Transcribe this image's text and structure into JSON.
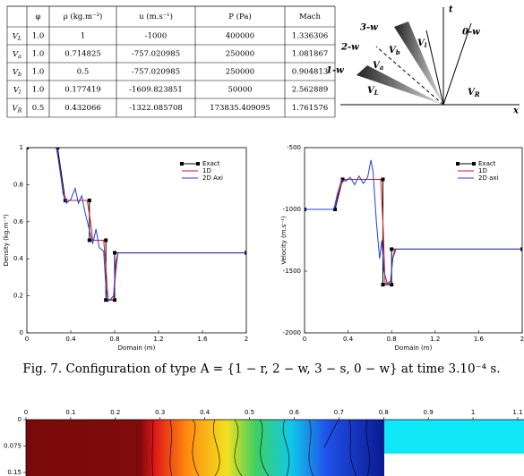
{
  "table": {
    "header": [
      "φ",
      "ρ (kg.m⁻³)",
      "u (m.s⁻¹)",
      "P (Pa)",
      "Mach"
    ],
    "rows": [
      {
        "symbol": "V",
        "subscript": "L",
        "cells": [
          "1.0",
          "1",
          "-1000",
          "400000",
          "1.336306"
        ]
      },
      {
        "symbol": "V",
        "subscript": "a",
        "cells": [
          "1.0",
          "0.714825",
          "-757.020985",
          "250000",
          "1.081867"
        ]
      },
      {
        "symbol": "V",
        "subscript": "b",
        "cells": [
          "1.0",
          "0.5",
          "-757.020985",
          "250000",
          "0.904813"
        ]
      },
      {
        "symbol": "V",
        "subscript": "l",
        "cells": [
          "1.0",
          "0.177419",
          "-1609.823851",
          "50000",
          "2.562889"
        ]
      },
      {
        "symbol": "V",
        "subscript": "R",
        "cells": [
          "0.5",
          "0.432066",
          "-1322.085708",
          "173835.409095",
          "1.761576"
        ]
      }
    ]
  },
  "diagram": {
    "t_label": "t",
    "x_label": "x",
    "waves": [
      "3-w",
      "2-w",
      "1-w",
      "0-w"
    ],
    "states": [
      {
        "symbol": "V",
        "subscript": "l"
      },
      {
        "symbol": "V",
        "subscript": "b"
      },
      {
        "symbol": "V",
        "subscript": "a"
      },
      {
        "symbol": "V",
        "subscript": "L"
      },
      {
        "symbol": "V",
        "subscript": "R"
      }
    ]
  },
  "chart_data": [
    {
      "type": "line",
      "x_label": "Domain (m)",
      "y_label": "Density (kg.m⁻³)",
      "xlim": [
        0,
        2
      ],
      "xticks": [
        0,
        0.4,
        0.8,
        1.2,
        1.6,
        2
      ],
      "ylim": [
        0,
        1
      ],
      "yticks": [
        0,
        0.2,
        0.4,
        0.6,
        0.8,
        1
      ],
      "legend": "upper right",
      "series": [
        {
          "name": "Exact",
          "color": "#000000",
          "markers": true,
          "x": [
            0,
            0.28,
            0.35,
            0.57,
            0.57,
            0.72,
            0.72,
            0.8,
            0.8,
            2
          ],
          "values": [
            1,
            1,
            0.714825,
            0.714825,
            0.5,
            0.5,
            0.177419,
            0.177419,
            0.432066,
            0.432066
          ]
        },
        {
          "name": "1D",
          "color": "#e01010",
          "markers": false,
          "x": [
            0,
            0.27,
            0.3,
            0.33,
            0.36,
            0.55,
            0.58,
            0.6,
            0.7,
            0.72,
            0.74,
            0.79,
            0.81,
            0.83,
            2
          ],
          "values": [
            1,
            1,
            0.88,
            0.76,
            0.715,
            0.715,
            0.6,
            0.5,
            0.5,
            0.35,
            0.18,
            0.18,
            0.33,
            0.432,
            0.432
          ]
        },
        {
          "name": "2D Axi",
          "color": "#2040e0",
          "markers": false,
          "x": [
            0,
            0.27,
            0.3,
            0.33,
            0.36,
            0.4,
            0.44,
            0.47,
            0.5,
            0.53,
            0.56,
            0.6,
            0.63,
            0.66,
            0.7,
            0.72,
            0.74,
            0.76,
            0.79,
            0.81,
            0.83,
            2
          ],
          "values": [
            1,
            1,
            0.9,
            0.75,
            0.7,
            0.72,
            0.78,
            0.7,
            0.74,
            0.65,
            0.58,
            0.48,
            0.56,
            0.46,
            0.44,
            0.25,
            0.17,
            0.18,
            0.2,
            0.38,
            0.432,
            0.432
          ]
        }
      ]
    },
    {
      "type": "line",
      "x_label": "Domain (m)",
      "y_label": "Velocity (m.s⁻¹)",
      "xlim": [
        0,
        2
      ],
      "xticks": [
        0,
        0.4,
        0.8,
        1.2,
        1.6,
        2
      ],
      "ylim": [
        -2000,
        -500
      ],
      "yticks": [
        -2000,
        -1500,
        -1000,
        -500
      ],
      "legend": "upper right",
      "series": [
        {
          "name": "Exact",
          "color": "#000000",
          "markers": true,
          "x": [
            0,
            0.28,
            0.35,
            0.72,
            0.72,
            0.8,
            0.8,
            2
          ],
          "values": [
            -1000,
            -1000,
            -757.020985,
            -757.020985,
            -1609.823851,
            -1609.823851,
            -1322.085708,
            -1322.085708
          ]
        },
        {
          "name": "1D",
          "color": "#e01010",
          "markers": false,
          "x": [
            0,
            0.27,
            0.3,
            0.34,
            0.37,
            0.7,
            0.72,
            0.74,
            0.79,
            0.81,
            0.83,
            2
          ],
          "values": [
            -1000,
            -1000,
            -900,
            -790,
            -757,
            -757,
            -1100,
            -1600,
            -1600,
            -1400,
            -1322,
            -1322
          ]
        },
        {
          "name": "2D axi",
          "color": "#2040e0",
          "markers": false,
          "x": [
            0,
            0.27,
            0.3,
            0.34,
            0.38,
            0.42,
            0.46,
            0.5,
            0.54,
            0.58,
            0.61,
            0.63,
            0.66,
            0.69,
            0.71,
            0.73,
            0.76,
            0.79,
            0.81,
            0.84,
            2
          ],
          "values": [
            -1000,
            -1000,
            -880,
            -760,
            -770,
            -740,
            -800,
            -730,
            -790,
            -740,
            -600,
            -700,
            -1100,
            -1400,
            -1250,
            -1500,
            -1600,
            -1580,
            -1400,
            -1322,
            -1322
          ]
        }
      ]
    }
  ],
  "caption": "Fig. 7. Configuration of type A = {1 − r, 2 − w, 3 − s, 0 − w} at time 3.10⁻⁴ s.",
  "contour": {
    "xlim": [
      0,
      1.1
    ],
    "xticks": [
      0,
      0.1,
      0.2,
      0.3,
      0.4,
      0.5,
      0.6,
      0.7,
      0.8,
      0.9,
      1,
      1.1
    ],
    "ylim": [
      0,
      0.15
    ],
    "yticks": [
      0,
      0.075,
      0.15
    ]
  }
}
